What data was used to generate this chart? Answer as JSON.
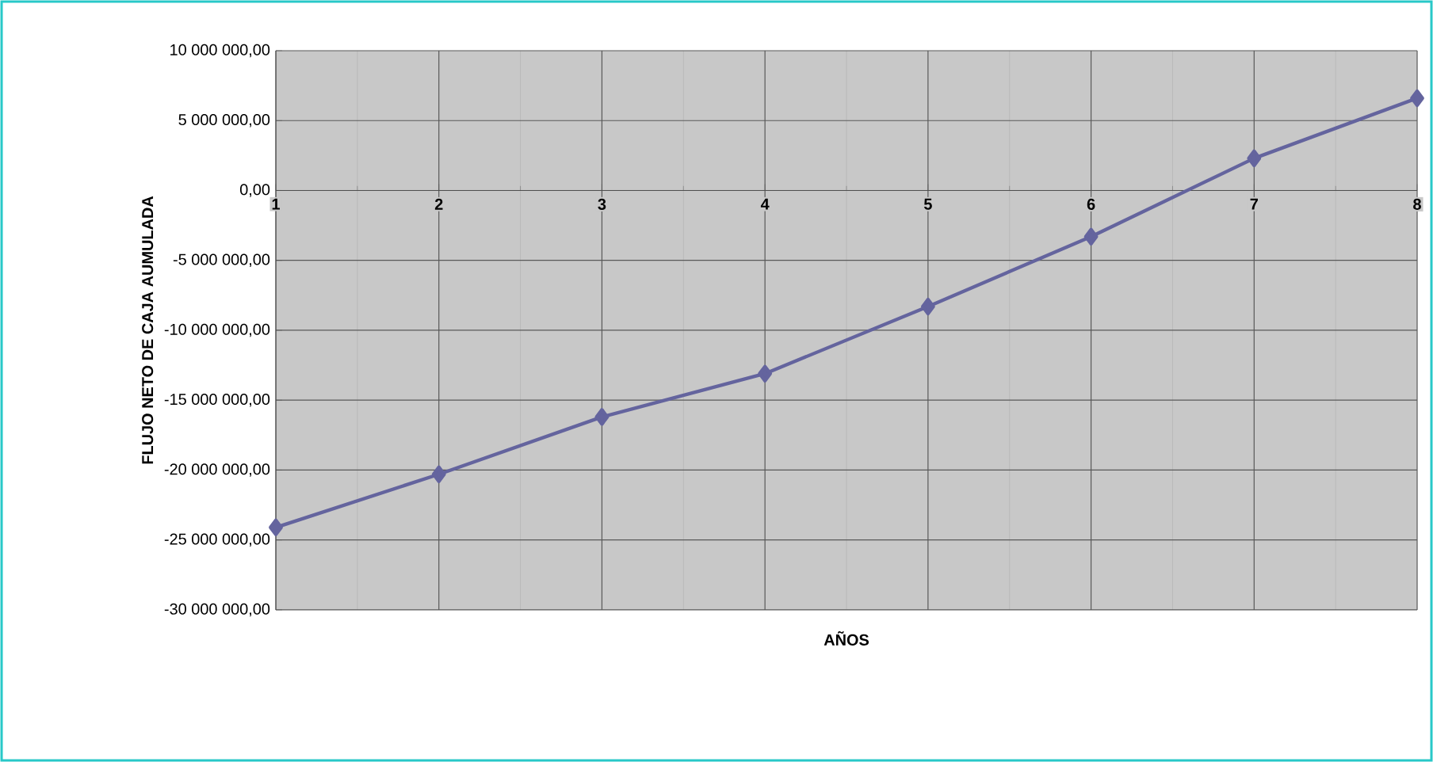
{
  "chart_data": {
    "type": "line",
    "xlabel": "AÑOS",
    "ylabel": "FLUJO NETO DE CAJA AUMULADA",
    "x": [
      1,
      2,
      3,
      4,
      5,
      6,
      7,
      8
    ],
    "series": [
      {
        "color": "#64649e",
        "values": [
          -24100000,
          -20300000,
          -16200000,
          -13100000,
          -8300000,
          -3300000,
          2300000,
          6600000
        ]
      }
    ],
    "xlim": [
      1,
      8
    ],
    "xticks": [
      1,
      2,
      3,
      4,
      5,
      6,
      7,
      8
    ],
    "ylim": [
      -30000000,
      10000000
    ],
    "yticks": [
      {
        "value": -30000000,
        "label": "-30 000 000,00"
      },
      {
        "value": -25000000,
        "label": "-25 000 000,00"
      },
      {
        "value": -20000000,
        "label": "-20 000 000,00"
      },
      {
        "value": -15000000,
        "label": "-15 000 000,00"
      },
      {
        "value": -10000000,
        "label": "-10 000 000,00"
      },
      {
        "value": -5000000,
        "label": "-5 000 000,00"
      },
      {
        "value": 0,
        "label": "0,00"
      },
      {
        "value": 5000000,
        "label": "5 000 000,00"
      },
      {
        "value": 10000000,
        "label": "10 000 000,00"
      }
    ],
    "grid": true,
    "marker": "diamond",
    "line_style": "solid"
  }
}
